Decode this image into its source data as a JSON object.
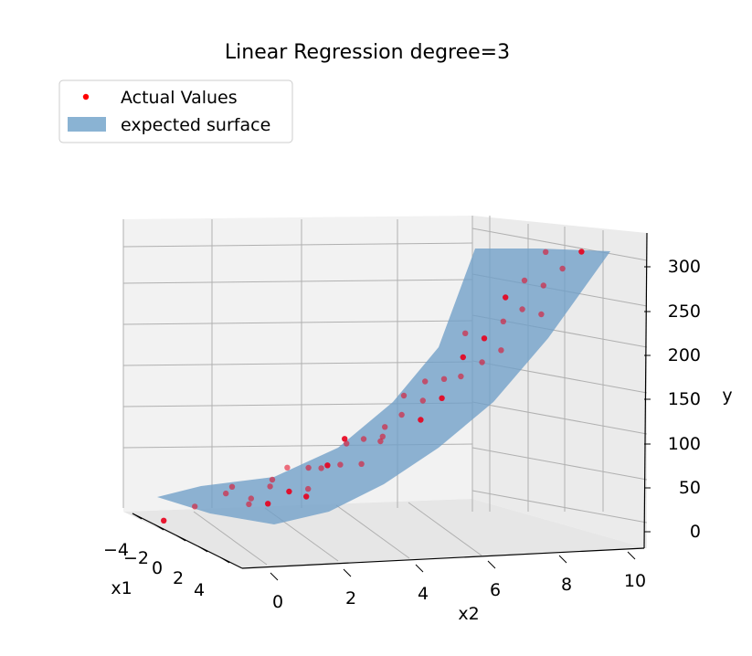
{
  "chart_data": {
    "type": "scatter",
    "subtype": "3d-scatter-with-surface",
    "title": "Linear Regression degree=3",
    "xlabel": "x1",
    "ylabel": "x2",
    "zlabel": "y",
    "x1_ticks": [
      "−4",
      "−2",
      "0",
      "2",
      "4"
    ],
    "x2_ticks": [
      "0",
      "2",
      "4",
      "6",
      "8",
      "10"
    ],
    "y_ticks": [
      "0",
      "50",
      "100",
      "150",
      "200",
      "250",
      "300"
    ],
    "x1_range": [
      -5,
      5
    ],
    "x2_range": [
      0,
      10
    ],
    "y_range": [
      -10,
      320
    ],
    "grid": true,
    "legend_position": "upper-left",
    "legend": [
      {
        "label": "Actual Values",
        "kind": "marker",
        "color": "#ff0000"
      },
      {
        "label": "expected surface",
        "kind": "patch",
        "color": "#8ab3d3"
      }
    ],
    "colors": {
      "points": "#e8001c",
      "surface": "#6f9fc8",
      "pane": "#f2f2f2",
      "grid": "#b0b0b0"
    },
    "series": [
      {
        "name": "Actual Values",
        "x2": [
          0.3,
          0.8,
          1.3,
          1.6,
          1.8,
          2.0,
          2.2,
          2.4,
          2.6,
          2.8,
          3.0,
          3.1,
          3.3,
          3.4,
          3.6,
          3.9,
          4.1,
          4.3,
          4.4,
          4.6,
          4.8,
          5.0,
          5.2,
          5.4,
          5.6,
          5.8,
          6.0,
          6.2,
          6.4,
          6.6,
          6.8,
          7.0,
          7.2,
          7.4,
          7.6,
          7.8,
          8.0,
          8.2,
          8.4,
          8.6,
          8.8,
          9.0,
          9.2,
          9.4,
          9.6,
          9.8
        ],
        "y": [
          5,
          12,
          18,
          22,
          15,
          25,
          28,
          33,
          20,
          38,
          40,
          45,
          30,
          52,
          48,
          60,
          55,
          70,
          64,
          80,
          75,
          90,
          85,
          100,
          110,
          95,
          120,
          130,
          125,
          140,
          150,
          145,
          160,
          170,
          175,
          185,
          195,
          205,
          210,
          220,
          230,
          240,
          250,
          260,
          270,
          285
        ]
      }
    ]
  }
}
